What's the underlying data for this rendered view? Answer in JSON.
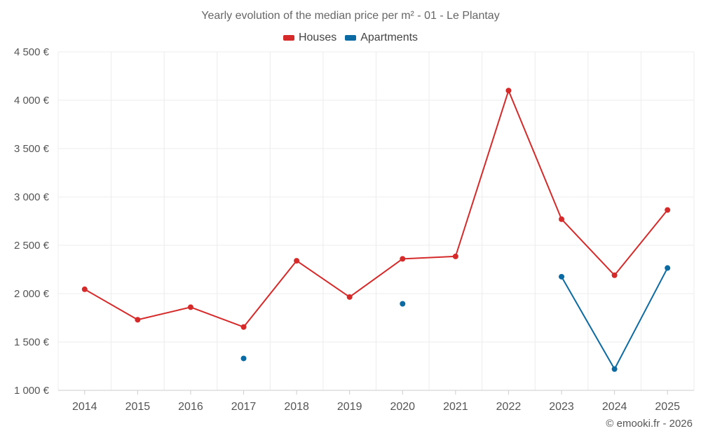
{
  "chart_data": {
    "type": "line",
    "title": "Yearly evolution of the median price per m² - 01 - Le Plantay",
    "categories": [
      "2014",
      "2015",
      "2016",
      "2017",
      "2018",
      "2019",
      "2020",
      "2021",
      "2022",
      "2023",
      "2024",
      "2025"
    ],
    "y_tick_labels": [
      "1 000 €",
      "1 500 €",
      "2 000 €",
      "2 500 €",
      "3 000 €",
      "3 500 €",
      "4 000 €",
      "4 500 €"
    ],
    "y_ticks": [
      1000,
      1500,
      2000,
      2500,
      3000,
      3500,
      4000,
      4500
    ],
    "ylim": [
      1000,
      4500
    ],
    "xlabel": "",
    "ylabel": "",
    "grid": true,
    "legend_position": "top-center",
    "series": [
      {
        "name": "Houses",
        "color": "#d62a2a",
        "values": [
          2045,
          1730,
          1860,
          1655,
          2340,
          1965,
          2360,
          2385,
          4100,
          2770,
          2190,
          2865
        ]
      },
      {
        "name": "Apartments",
        "color": "#0b6aa2",
        "values": [
          null,
          null,
          null,
          1330,
          null,
          null,
          1895,
          null,
          null,
          2175,
          1220,
          2265
        ]
      }
    ]
  },
  "credit": "© emooki.fr - 2026"
}
